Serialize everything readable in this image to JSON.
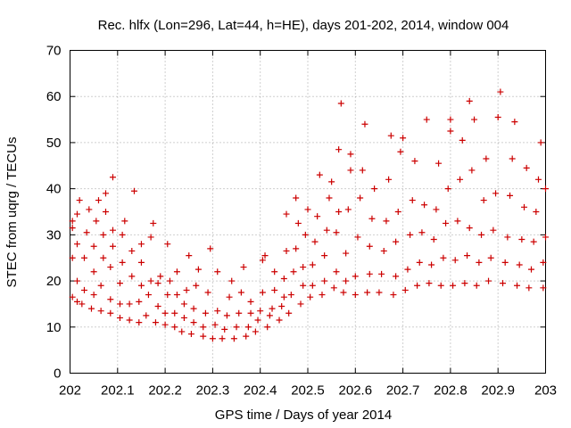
{
  "chart_data": {
    "type": "scatter",
    "title": "Rec. hlfx (Lon=296, Lat=44, h=HE), days 201-202, 2014, window 004",
    "xlabel": "GPS time / Days of year 2014",
    "ylabel": "STEC from uqrg / TECUs",
    "xlim": [
      202,
      203
    ],
    "ylim": [
      0,
      70
    ],
    "xticks": [
      202,
      202.1,
      202.2,
      202.3,
      202.4,
      202.5,
      202.6,
      202.7,
      202.8,
      202.9,
      203
    ],
    "xtick_labels": [
      "202",
      "202.1",
      "202.2",
      "202.3",
      "202.4",
      "202.5",
      "202.6",
      "202.7",
      "202.8",
      "202.9",
      "203"
    ],
    "yticks": [
      0,
      10,
      20,
      30,
      40,
      50,
      60,
      70
    ],
    "ytick_labels": [
      "0",
      "10",
      "20",
      "30",
      "40",
      "50",
      "60",
      "70"
    ],
    "grid": true,
    "marker": "+",
    "color": "#cc0000",
    "series": [
      {
        "name": "STEC",
        "points": [
          [
            202.005,
            16.5
          ],
          [
            202.005,
            25.0
          ],
          [
            202.005,
            31.5
          ],
          [
            202.005,
            33.0
          ],
          [
            202.015,
            15.5
          ],
          [
            202.015,
            20.0
          ],
          [
            202.015,
            28.0
          ],
          [
            202.015,
            34.5
          ],
          [
            202.02,
            37.5
          ],
          [
            202.025,
            15.0
          ],
          [
            202.03,
            18.0
          ],
          [
            202.03,
            25.0
          ],
          [
            202.035,
            30.5
          ],
          [
            202.04,
            35.5
          ],
          [
            202.045,
            14.0
          ],
          [
            202.05,
            17.0
          ],
          [
            202.05,
            22.0
          ],
          [
            202.05,
            27.5
          ],
          [
            202.055,
            33.0
          ],
          [
            202.06,
            37.5
          ],
          [
            202.065,
            13.5
          ],
          [
            202.065,
            19.0
          ],
          [
            202.07,
            25.0
          ],
          [
            202.07,
            30.0
          ],
          [
            202.075,
            35.0
          ],
          [
            202.075,
            39.0
          ],
          [
            202.085,
            13.0
          ],
          [
            202.085,
            16.0
          ],
          [
            202.085,
            23.0
          ],
          [
            202.09,
            27.5
          ],
          [
            202.09,
            31.0
          ],
          [
            202.09,
            42.5
          ],
          [
            202.105,
            12.0
          ],
          [
            202.105,
            15.0
          ],
          [
            202.105,
            19.5
          ],
          [
            202.11,
            24.0
          ],
          [
            202.11,
            30.0
          ],
          [
            202.115,
            33.0
          ],
          [
            202.125,
            11.5
          ],
          [
            202.125,
            15.0
          ],
          [
            202.13,
            21.0
          ],
          [
            202.13,
            26.5
          ],
          [
            202.135,
            39.5
          ],
          [
            202.145,
            11.0
          ],
          [
            202.145,
            15.5
          ],
          [
            202.15,
            19.0
          ],
          [
            202.15,
            24.0
          ],
          [
            202.15,
            28.0
          ],
          [
            202.16,
            12.5
          ],
          [
            202.165,
            17.0
          ],
          [
            202.17,
            20.0
          ],
          [
            202.17,
            29.5
          ],
          [
            202.175,
            32.5
          ],
          [
            202.18,
            11.0
          ],
          [
            202.185,
            14.5
          ],
          [
            202.185,
            19.5
          ],
          [
            202.19,
            21.0
          ],
          [
            202.2,
            10.5
          ],
          [
            202.2,
            13.0
          ],
          [
            202.205,
            17.0
          ],
          [
            202.205,
            28.0
          ],
          [
            202.21,
            20.0
          ],
          [
            202.22,
            10.0
          ],
          [
            202.22,
            13.0
          ],
          [
            202.225,
            17.0
          ],
          [
            202.225,
            22.0
          ],
          [
            202.235,
            9.0
          ],
          [
            202.24,
            12.0
          ],
          [
            202.24,
            15.0
          ],
          [
            202.245,
            18.0
          ],
          [
            202.25,
            25.5
          ],
          [
            202.255,
            8.5
          ],
          [
            202.26,
            11.0
          ],
          [
            202.26,
            14.0
          ],
          [
            202.265,
            19.0
          ],
          [
            202.27,
            22.5
          ],
          [
            202.28,
            8.0
          ],
          [
            202.28,
            10.0
          ],
          [
            202.285,
            13.0
          ],
          [
            202.29,
            17.5
          ],
          [
            202.295,
            27.0
          ],
          [
            202.3,
            7.5
          ],
          [
            202.305,
            10.5
          ],
          [
            202.31,
            13.5
          ],
          [
            202.31,
            22.0
          ],
          [
            202.32,
            7.5
          ],
          [
            202.325,
            9.5
          ],
          [
            202.33,
            12.5
          ],
          [
            202.335,
            16.5
          ],
          [
            202.34,
            20.0
          ],
          [
            202.345,
            7.5
          ],
          [
            202.35,
            10.0
          ],
          [
            202.355,
            13.0
          ],
          [
            202.36,
            17.5
          ],
          [
            202.365,
            23.0
          ],
          [
            202.37,
            8.0
          ],
          [
            202.375,
            10.0
          ],
          [
            202.38,
            13.0
          ],
          [
            202.38,
            15.5
          ],
          [
            202.39,
            9.0
          ],
          [
            202.395,
            11.5
          ],
          [
            202.4,
            13.5
          ],
          [
            202.405,
            17.5
          ],
          [
            202.405,
            24.5
          ],
          [
            202.41,
            25.5
          ],
          [
            202.415,
            10.0
          ],
          [
            202.42,
            12.5
          ],
          [
            202.425,
            14.0
          ],
          [
            202.43,
            18.0
          ],
          [
            202.43,
            22.0
          ],
          [
            202.44,
            11.5
          ],
          [
            202.445,
            14.5
          ],
          [
            202.45,
            16.5
          ],
          [
            202.45,
            20.5
          ],
          [
            202.455,
            26.5
          ],
          [
            202.455,
            34.5
          ],
          [
            202.46,
            13.0
          ],
          [
            202.465,
            17.0
          ],
          [
            202.47,
            22.0
          ],
          [
            202.475,
            27.0
          ],
          [
            202.475,
            38.0
          ],
          [
            202.48,
            32.5
          ],
          [
            202.485,
            15.0
          ],
          [
            202.49,
            19.0
          ],
          [
            202.49,
            23.0
          ],
          [
            202.495,
            30.0
          ],
          [
            202.5,
            35.5
          ],
          [
            202.505,
            16.5
          ],
          [
            202.51,
            19.0
          ],
          [
            202.51,
            23.5
          ],
          [
            202.515,
            28.5
          ],
          [
            202.52,
            34.0
          ],
          [
            202.525,
            43.0
          ],
          [
            202.53,
            17.0
          ],
          [
            202.535,
            20.0
          ],
          [
            202.535,
            25.5
          ],
          [
            202.54,
            31.0
          ],
          [
            202.545,
            38.0
          ],
          [
            202.55,
            41.5
          ],
          [
            202.555,
            18.5
          ],
          [
            202.56,
            22.0
          ],
          [
            202.56,
            30.5
          ],
          [
            202.565,
            35.0
          ],
          [
            202.565,
            48.5
          ],
          [
            202.57,
            58.5
          ],
          [
            202.575,
            17.5
          ],
          [
            202.58,
            20.0
          ],
          [
            202.58,
            26.0
          ],
          [
            202.585,
            35.5
          ],
          [
            202.59,
            44.0
          ],
          [
            202.59,
            47.5
          ],
          [
            202.6,
            17.0
          ],
          [
            202.6,
            21.0
          ],
          [
            202.605,
            29.5
          ],
          [
            202.61,
            38.0
          ],
          [
            202.615,
            44.0
          ],
          [
            202.62,
            54.0
          ],
          [
            202.625,
            17.5
          ],
          [
            202.63,
            21.5
          ],
          [
            202.63,
            27.5
          ],
          [
            202.635,
            33.5
          ],
          [
            202.64,
            40.0
          ],
          [
            202.65,
            17.5
          ],
          [
            202.655,
            21.5
          ],
          [
            202.66,
            26.5
          ],
          [
            202.665,
            33.0
          ],
          [
            202.67,
            42.0
          ],
          [
            202.675,
            51.5
          ],
          [
            202.68,
            17.0
          ],
          [
            202.685,
            21.0
          ],
          [
            202.685,
            28.5
          ],
          [
            202.69,
            35.0
          ],
          [
            202.695,
            48.0
          ],
          [
            202.7,
            51.0
          ],
          [
            202.705,
            18.0
          ],
          [
            202.71,
            22.5
          ],
          [
            202.715,
            30.0
          ],
          [
            202.72,
            37.5
          ],
          [
            202.725,
            46.0
          ],
          [
            202.73,
            19.0
          ],
          [
            202.735,
            24.0
          ],
          [
            202.74,
            30.5
          ],
          [
            202.745,
            36.5
          ],
          [
            202.75,
            55.0
          ],
          [
            202.755,
            19.5
          ],
          [
            202.76,
            23.5
          ],
          [
            202.765,
            29.0
          ],
          [
            202.77,
            35.5
          ],
          [
            202.775,
            45.5
          ],
          [
            202.78,
            19.0
          ],
          [
            202.785,
            25.0
          ],
          [
            202.79,
            32.5
          ],
          [
            202.795,
            40.0
          ],
          [
            202.8,
            52.5
          ],
          [
            202.8,
            55.0
          ],
          [
            202.805,
            19.0
          ],
          [
            202.81,
            24.5
          ],
          [
            202.815,
            33.0
          ],
          [
            202.82,
            42.0
          ],
          [
            202.825,
            50.5
          ],
          [
            202.83,
            19.5
          ],
          [
            202.835,
            25.5
          ],
          [
            202.84,
            31.5
          ],
          [
            202.845,
            44.0
          ],
          [
            202.85,
            55.0
          ],
          [
            202.84,
            59.0
          ],
          [
            202.855,
            19.0
          ],
          [
            202.86,
            24.0
          ],
          [
            202.865,
            30.0
          ],
          [
            202.87,
            37.5
          ],
          [
            202.875,
            46.5
          ],
          [
            202.88,
            20.0
          ],
          [
            202.885,
            25.0
          ],
          [
            202.89,
            31.0
          ],
          [
            202.895,
            39.0
          ],
          [
            202.9,
            55.5
          ],
          [
            202.905,
            61.0
          ],
          [
            202.91,
            19.5
          ],
          [
            202.915,
            24.0
          ],
          [
            202.92,
            29.5
          ],
          [
            202.925,
            38.5
          ],
          [
            202.93,
            46.5
          ],
          [
            202.935,
            54.5
          ],
          [
            202.94,
            19.0
          ],
          [
            202.945,
            23.5
          ],
          [
            202.95,
            29.0
          ],
          [
            202.955,
            36.0
          ],
          [
            202.96,
            44.5
          ],
          [
            202.965,
            18.5
          ],
          [
            202.97,
            22.5
          ],
          [
            202.975,
            28.5
          ],
          [
            202.98,
            35.0
          ],
          [
            202.985,
            42.0
          ],
          [
            202.99,
            50.0
          ],
          [
            202.995,
            18.5
          ],
          [
            202.995,
            24.0
          ],
          [
            203.0,
            29.5
          ],
          [
            203.0,
            40.0
          ]
        ]
      }
    ]
  }
}
